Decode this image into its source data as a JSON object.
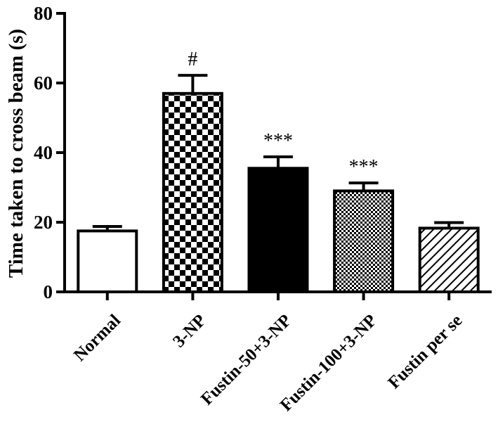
{
  "chart_data": {
    "type": "bar",
    "ylabel": "Time taken to cross beam (s)",
    "xlabel": "",
    "ylim": [
      0,
      80
    ],
    "yticks": [
      0,
      20,
      40,
      60,
      80
    ],
    "grid": false,
    "categories": [
      "Normal",
      "3-NP",
      "Fustin-50+3-NP",
      "Fustin-100+3-NP",
      "Fustin per se"
    ],
    "values": [
      17.5,
      57.0,
      35.5,
      29.0,
      18.3
    ],
    "errors": [
      1.3,
      5.2,
      3.3,
      2.3,
      1.6
    ],
    "annotations": [
      "",
      "#",
      "***",
      "***",
      ""
    ],
    "fills": [
      "white",
      "checker-large",
      "solid-black",
      "checker-small",
      "diagonal-hatch"
    ]
  }
}
